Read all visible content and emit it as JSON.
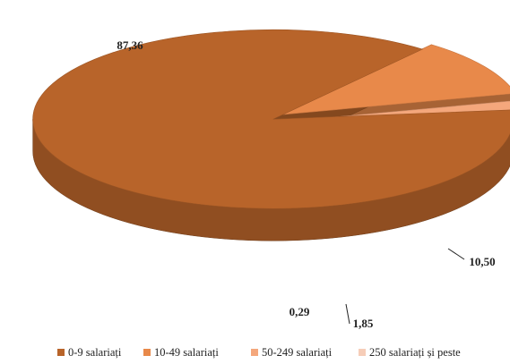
{
  "chart_data": {
    "type": "pie",
    "categories": [
      "0-9 salariați",
      "10-49 salariați",
      "50-249 salariați",
      "250 salariați  și peste"
    ],
    "values": [
      87.36,
      10.5,
      1.85,
      0.29
    ],
    "value_labels": [
      "87,36",
      "10,50",
      "1,85",
      "0,29"
    ],
    "colors": [
      "#b8642a",
      "#e8894a",
      "#f4a77c",
      "#f6cdb8"
    ],
    "legend": "bottom"
  }
}
